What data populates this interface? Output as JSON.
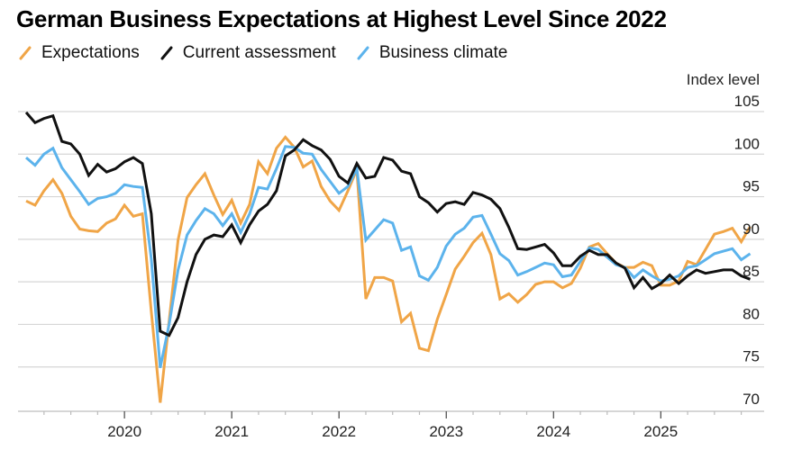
{
  "chart_data": {
    "type": "line",
    "title": "German Business Expectations at Highest Level Since 2022",
    "xlabel": "",
    "ylabel": "Index level",
    "ylim": [
      70,
      105
    ],
    "yticks": [
      105,
      100,
      95,
      90,
      85,
      80,
      75,
      70
    ],
    "xlim": [
      "2018-12",
      "2025-12"
    ],
    "xticks": [
      {
        "label": "2020",
        "month": "2020-01"
      },
      {
        "label": "2021",
        "month": "2021-01"
      },
      {
        "label": "2022",
        "month": "2022-01"
      },
      {
        "label": "2023",
        "month": "2023-01"
      },
      {
        "label": "2024",
        "month": "2024-01"
      },
      {
        "label": "2025",
        "month": "2025-01"
      }
    ],
    "grid": true,
    "legend_position": "top-left",
    "x": [
      "2019-01",
      "2019-02",
      "2019-03",
      "2019-04",
      "2019-05",
      "2019-06",
      "2019-07",
      "2019-08",
      "2019-09",
      "2019-10",
      "2019-11",
      "2019-12",
      "2020-01",
      "2020-02",
      "2020-03",
      "2020-04",
      "2020-05",
      "2020-06",
      "2020-07",
      "2020-08",
      "2020-09",
      "2020-10",
      "2020-11",
      "2020-12",
      "2021-01",
      "2021-02",
      "2021-03",
      "2021-04",
      "2021-05",
      "2021-06",
      "2021-07",
      "2021-08",
      "2021-09",
      "2021-10",
      "2021-11",
      "2021-12",
      "2022-01",
      "2022-02",
      "2022-03",
      "2022-04",
      "2022-05",
      "2022-06",
      "2022-07",
      "2022-08",
      "2022-09",
      "2022-10",
      "2022-11",
      "2022-12",
      "2023-01",
      "2023-02",
      "2023-03",
      "2023-04",
      "2023-05",
      "2023-06",
      "2023-07",
      "2023-08",
      "2023-09",
      "2023-10",
      "2023-11",
      "2023-12",
      "2024-01",
      "2024-02",
      "2024-03",
      "2024-04",
      "2024-05",
      "2024-06",
      "2024-07",
      "2024-08",
      "2024-09",
      "2024-10",
      "2024-11",
      "2024-12",
      "2025-01",
      "2025-02",
      "2025-03",
      "2025-04",
      "2025-05",
      "2025-06",
      "2025-07",
      "2025-08",
      "2025-09",
      "2025-10"
    ],
    "series": [
      {
        "name": "Expectations",
        "color": "#f0a547",
        "values": [
          94.5,
          94.0,
          95.7,
          97.0,
          95.4,
          92.7,
          91.2,
          91.0,
          90.9,
          91.9,
          92.4,
          94.0,
          92.7,
          93.0,
          81.5,
          70.8,
          80.4,
          89.9,
          94.9,
          96.4,
          97.7,
          95.2,
          92.9,
          94.6,
          91.9,
          94.1,
          99.1,
          97.7,
          100.7,
          102.0,
          100.8,
          98.5,
          99.2,
          96.2,
          94.5,
          93.4,
          95.7,
          98.2,
          83.0,
          85.5,
          85.5,
          85.1,
          80.3,
          81.3,
          77.2,
          76.9,
          80.6,
          83.5,
          86.5,
          88.0,
          89.6,
          90.7,
          88.2,
          83.0,
          83.6,
          82.6,
          83.5,
          84.7,
          85.0,
          85.0,
          84.3,
          84.8,
          86.6,
          89.1,
          89.5,
          88.3,
          87.2,
          86.7,
          86.7,
          87.3,
          86.9,
          84.6,
          84.6,
          85.1,
          87.4,
          87.0,
          88.8,
          90.6,
          90.9,
          91.3,
          89.7,
          91.5
        ]
      },
      {
        "name": "Current assessment",
        "color": "#111111",
        "values": [
          104.9,
          103.7,
          104.2,
          104.5,
          101.5,
          101.2,
          100.0,
          97.5,
          98.8,
          97.9,
          98.3,
          99.1,
          99.6,
          98.9,
          93.0,
          79.2,
          78.7,
          80.8,
          85.0,
          88.2,
          90.0,
          90.5,
          90.3,
          91.7,
          89.6,
          91.7,
          93.3,
          94.1,
          95.7,
          99.8,
          100.5,
          101.7,
          101.0,
          100.5,
          99.4,
          97.4,
          96.6,
          98.9,
          97.2,
          97.4,
          99.6,
          99.3,
          98.0,
          97.7,
          95.0,
          94.3,
          93.2,
          94.2,
          94.4,
          94.1,
          95.5,
          95.2,
          94.7,
          93.6,
          91.4,
          88.9,
          88.8,
          89.1,
          89.4,
          88.4,
          86.9,
          86.9,
          88.0,
          88.7,
          88.2,
          88.2,
          87.2,
          86.6,
          84.3,
          85.5,
          84.2,
          84.8,
          85.8,
          84.8,
          85.7,
          86.4,
          86.0,
          86.2,
          86.4,
          86.4,
          85.7,
          85.3
        ]
      },
      {
        "name": "Business climate",
        "color": "#5cb3ec",
        "values": [
          99.6,
          98.7,
          100.0,
          100.7,
          98.4,
          97.0,
          95.6,
          94.1,
          94.8,
          95.0,
          95.4,
          96.4,
          96.2,
          96.1,
          87.7,
          74.9,
          80.0,
          86.4,
          90.5,
          92.2,
          93.6,
          93.0,
          91.6,
          93.0,
          90.8,
          93.0,
          96.1,
          95.9,
          98.3,
          100.9,
          100.8,
          100.1,
          100.0,
          98.2,
          96.8,
          95.4,
          96.2,
          98.3,
          89.9,
          91.1,
          92.3,
          91.9,
          88.7,
          89.1,
          85.7,
          85.2,
          86.7,
          89.2,
          90.6,
          91.3,
          92.6,
          92.8,
          90.6,
          88.3,
          87.5,
          85.8,
          86.2,
          86.7,
          87.2,
          87.0,
          85.6,
          85.8,
          87.4,
          89.0,
          88.8,
          87.9,
          87.0,
          86.7,
          85.5,
          86.4,
          85.7,
          85.1,
          85.3,
          85.7,
          86.7,
          86.9,
          87.6,
          88.3,
          88.6,
          88.9,
          87.6,
          88.3
        ]
      }
    ]
  }
}
